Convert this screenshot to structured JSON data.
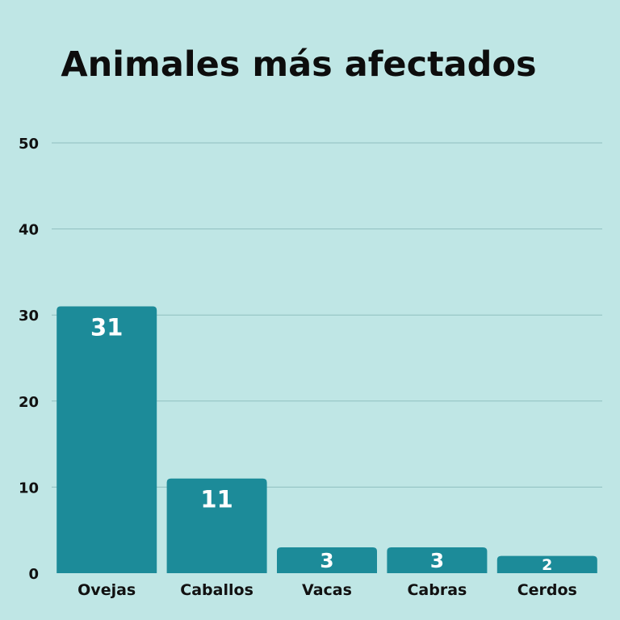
{
  "chart_data": {
    "type": "bar",
    "title": "Animales más afectados",
    "xlabel": "",
    "ylabel": "",
    "categories": [
      "Ovejas",
      "Caballos",
      "Vacas",
      "Cabras",
      "Cerdos"
    ],
    "values": [
      31,
      11,
      3,
      3,
      2
    ],
    "data_labels": [
      "31",
      "11",
      "3",
      "3",
      "2"
    ],
    "ylim": [
      0,
      50
    ],
    "yticks": [
      "0",
      "10",
      "20",
      "30",
      "40",
      "50"
    ],
    "grid": true,
    "legend": "none",
    "colors": {
      "background": "#bfe6e5",
      "bar": "#1c8b99",
      "grid": "#8fbfbf",
      "label": "#ffffff"
    }
  }
}
